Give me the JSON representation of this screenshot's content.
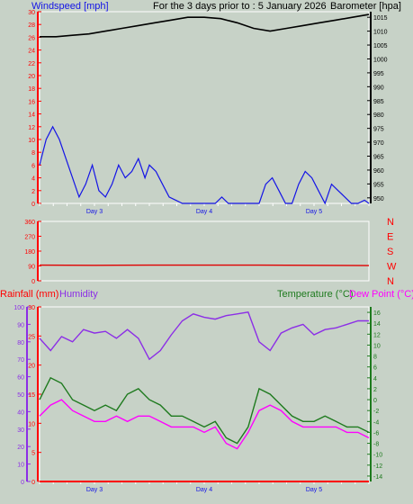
{
  "header": {
    "left_label": "Windspeed [mph]",
    "center_label": "For the 3 days prior to : 5 January 2026",
    "right_label": "Barometer [hpa]"
  },
  "bottom_header": {
    "rain_label": "Rainfall (mm)",
    "humidity_label": "Humidity",
    "temp_label": "Temperature (°C)",
    "dew_label": "Dew Point (°C)"
  },
  "colors": {
    "background": "#c7d2c7",
    "wind": "#1414e6",
    "barometer": "#000000",
    "direction": "#e00000",
    "rain": "#ff0000",
    "humidity": "#8c2ee6",
    "temperature": "#1e7a1e",
    "dewpoint": "#ff00ff",
    "axis_red": "#ff0000",
    "axis_black": "#000000",
    "axis_purple": "#8c2ee6",
    "axis_green": "#1e7a1e"
  },
  "chart_data": [
    {
      "type": "line",
      "panel": "wind-barometer",
      "title": "For the 3 days prior to : 5 January 2026",
      "categories": [
        "Day 3",
        "Day 4",
        "Day 5"
      ],
      "x_range_days": [
        0,
        3
      ],
      "category_positions_days": [
        0.5,
        1.5,
        2.5
      ],
      "left_axis": {
        "label": "Windspeed [mph]",
        "ylim": [
          0,
          30
        ],
        "ticks": [
          0,
          2,
          4,
          6,
          8,
          10,
          12,
          14,
          16,
          18,
          20,
          22,
          24,
          26,
          28,
          30
        ]
      },
      "right_axis": {
        "label": "Barometer [hpa]",
        "ylim": [
          948,
          1017
        ],
        "ticks": [
          950,
          955,
          960,
          965,
          970,
          975,
          980,
          985,
          990,
          995,
          1000,
          1005,
          1010,
          1015
        ]
      },
      "series": [
        {
          "name": "Windspeed [mph]",
          "axis": "left",
          "x": [
            0.0,
            0.06,
            0.12,
            0.18,
            0.24,
            0.3,
            0.36,
            0.42,
            0.48,
            0.54,
            0.6,
            0.66,
            0.72,
            0.78,
            0.84,
            0.9,
            0.96,
            1.0,
            1.06,
            1.12,
            1.18,
            1.24,
            1.3,
            1.36,
            1.42,
            1.48,
            1.54,
            1.6,
            1.66,
            1.72,
            1.78,
            1.84,
            1.9,
            1.96,
            2.0,
            2.06,
            2.12,
            2.18,
            2.24,
            2.3,
            2.36,
            2.42,
            2.48,
            2.54,
            2.6,
            2.66,
            2.72,
            2.78,
            2.84,
            2.9,
            2.96,
            3.0
          ],
          "values": [
            6,
            10,
            12,
            10,
            7,
            4,
            1,
            3,
            6,
            2,
            1,
            3,
            6,
            4,
            5,
            7,
            4,
            6,
            5,
            3,
            1,
            0.5,
            0,
            0,
            0,
            0,
            0,
            0,
            1,
            0,
            0,
            0,
            0,
            0,
            0,
            3,
            4,
            2,
            0,
            0,
            3,
            5,
            4,
            2,
            0,
            3,
            2,
            1,
            0,
            0,
            0.5,
            0
          ]
        },
        {
          "name": "Barometer [hpa]",
          "axis": "right",
          "x": [
            0.0,
            0.15,
            0.3,
            0.45,
            0.6,
            0.75,
            0.9,
            1.05,
            1.2,
            1.35,
            1.5,
            1.65,
            1.8,
            1.95,
            2.1,
            2.25,
            2.4,
            2.55,
            2.7,
            2.85,
            3.0
          ],
          "values": [
            1008,
            1008,
            1008.5,
            1009,
            1010,
            1011,
            1012,
            1013,
            1014,
            1015,
            1015,
            1014.5,
            1013,
            1011,
            1010,
            1011,
            1012,
            1013,
            1014,
            1015,
            1016
          ]
        }
      ]
    },
    {
      "type": "line",
      "panel": "wind-direction",
      "categories": [
        "Day 3",
        "Day 4",
        "Day 5"
      ],
      "x_range_days": [
        0,
        3
      ],
      "left_axis": {
        "ylim": [
          0,
          360
        ],
        "ticks": [
          0,
          90,
          180,
          270,
          360
        ]
      },
      "right_axis": {
        "ticks": [
          "N",
          "W",
          "S",
          "E",
          "N"
        ]
      },
      "series": [
        {
          "name": "Wind direction",
          "x": [
            0.0,
            0.5,
            1.0,
            1.5,
            2.0,
            2.5,
            3.0
          ],
          "values": [
            95,
            94,
            95,
            95,
            95,
            94,
            92
          ]
        }
      ]
    },
    {
      "type": "line",
      "panel": "rain-humidity-temperature",
      "categories": [
        "Day 3",
        "Day 4",
        "Day 5"
      ],
      "x_range_days": [
        0,
        3
      ],
      "humidity_axis": {
        "label": "Humidity",
        "ylim": [
          0,
          100
        ],
        "ticks": [
          0,
          10,
          20,
          30,
          40,
          50,
          60,
          70,
          80,
          90,
          100
        ]
      },
      "rain_axis": {
        "label": "Rainfall (mm)",
        "ylim": [
          0,
          30
        ],
        "ticks": [
          0,
          5,
          10,
          15,
          20,
          25,
          30
        ]
      },
      "temp_axis": {
        "label": "Temperature (°C)",
        "ylim": [
          -15,
          17
        ],
        "ticks": [
          -14,
          -12,
          -10,
          -8,
          -6,
          -4,
          -2,
          0,
          2,
          4,
          6,
          8,
          10,
          12,
          14,
          16
        ]
      },
      "series": [
        {
          "name": "Rainfall (mm)",
          "axis": "rain",
          "x": [
            0.0,
            3.0
          ],
          "values": [
            0,
            0
          ]
        },
        {
          "name": "Humidity",
          "axis": "humidity",
          "x": [
            0.0,
            0.1,
            0.2,
            0.3,
            0.4,
            0.5,
            0.6,
            0.7,
            0.8,
            0.9,
            1.0,
            1.1,
            1.2,
            1.3,
            1.4,
            1.5,
            1.6,
            1.7,
            1.8,
            1.9,
            2.0,
            2.1,
            2.2,
            2.3,
            2.4,
            2.5,
            2.6,
            2.7,
            2.8,
            2.9,
            3.0
          ],
          "values": [
            82,
            75,
            83,
            80,
            87,
            85,
            86,
            82,
            87,
            82,
            70,
            75,
            84,
            92,
            96,
            94,
            93,
            95,
            96,
            97,
            80,
            75,
            85,
            88,
            90,
            84,
            87,
            88,
            90,
            92,
            92
          ]
        },
        {
          "name": "Temperature (°C)",
          "axis": "temp",
          "x": [
            0.0,
            0.1,
            0.2,
            0.3,
            0.4,
            0.5,
            0.6,
            0.7,
            0.8,
            0.9,
            1.0,
            1.1,
            1.2,
            1.3,
            1.4,
            1.5,
            1.6,
            1.7,
            1.8,
            1.9,
            2.0,
            2.1,
            2.2,
            2.3,
            2.4,
            2.5,
            2.6,
            2.7,
            2.8,
            2.9,
            3.0
          ],
          "values": [
            0,
            4,
            3,
            0,
            -1,
            -2,
            -1,
            -2,
            1,
            2,
            0,
            -1,
            -3,
            -3,
            -4,
            -5,
            -4,
            -7,
            -8,
            -5,
            2,
            1,
            -1,
            -3,
            -4,
            -4,
            -3,
            -4,
            -5,
            -5,
            -6
          ]
        },
        {
          "name": "Dew Point (°C)",
          "axis": "temp",
          "x": [
            0.0,
            0.1,
            0.2,
            0.3,
            0.4,
            0.5,
            0.6,
            0.7,
            0.8,
            0.9,
            1.0,
            1.1,
            1.2,
            1.3,
            1.4,
            1.5,
            1.6,
            1.7,
            1.8,
            1.9,
            2.0,
            2.1,
            2.2,
            2.3,
            2.4,
            2.5,
            2.6,
            2.7,
            2.8,
            2.9,
            3.0
          ],
          "values": [
            -3,
            -1,
            0,
            -2,
            -3,
            -4,
            -4,
            -3,
            -4,
            -3,
            -3,
            -4,
            -5,
            -5,
            -5,
            -6,
            -5,
            -8,
            -9,
            -6,
            -2,
            -1,
            -2,
            -4,
            -5,
            -5,
            -5,
            -5,
            -6,
            -6,
            -7
          ]
        }
      ]
    }
  ]
}
